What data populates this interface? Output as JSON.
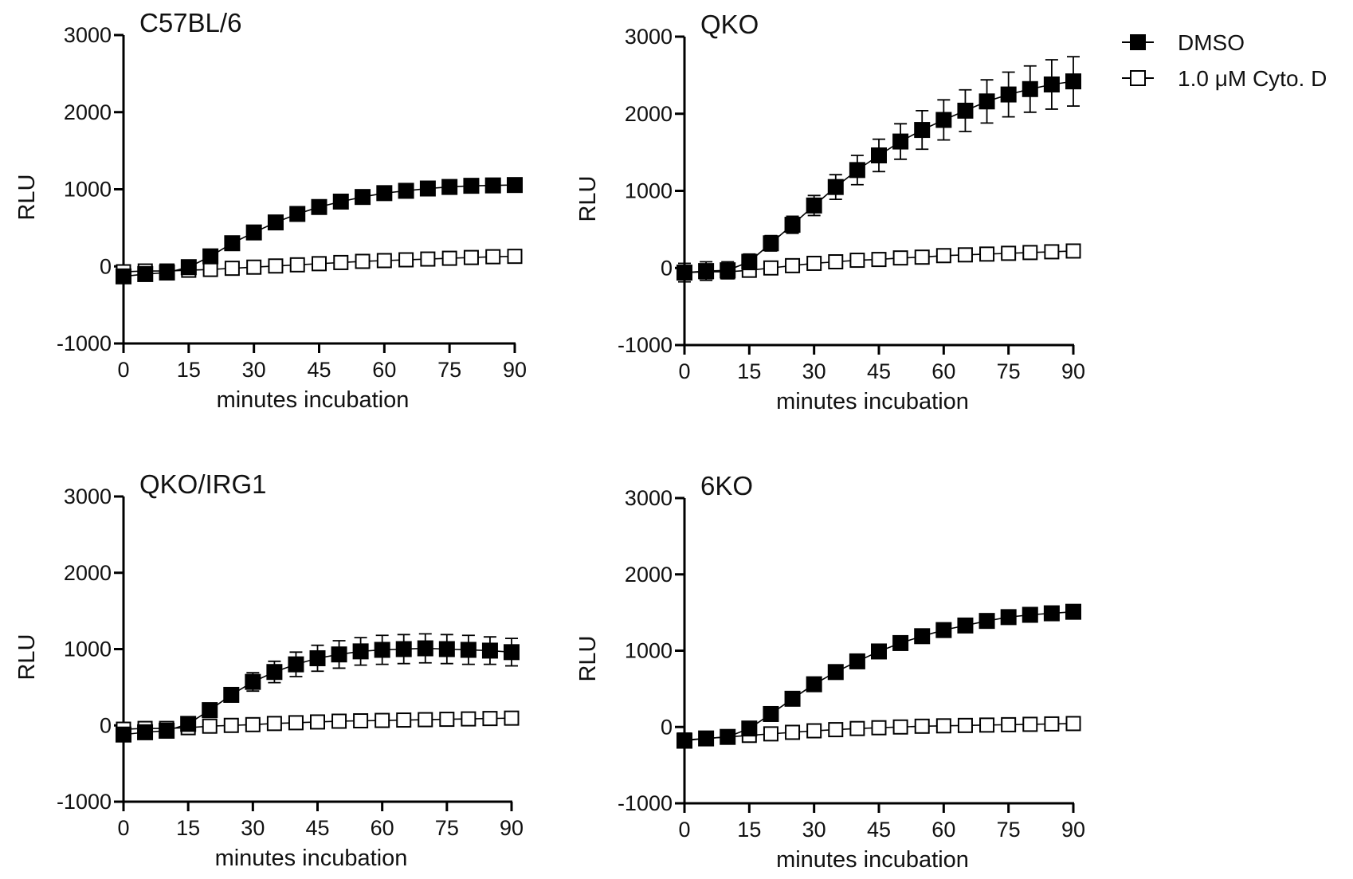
{
  "legend": {
    "position": "top-right",
    "entries": [
      {
        "label": "DMSO",
        "marker": "filled-square"
      },
      {
        "label": "1.0 μM Cyto. D",
        "marker": "open-square"
      }
    ]
  },
  "colors": {
    "dmso": "#000000",
    "cyto": "#000000",
    "open_fill": "#ffffff"
  },
  "chart_data": [
    {
      "type": "line",
      "title": "C57BL/6",
      "xlabel": "minutes incubation",
      "ylabel": "RLU",
      "xlim": [
        0,
        90
      ],
      "ylim": [
        -1000,
        3000
      ],
      "xticks": [
        0,
        15,
        30,
        45,
        60,
        75,
        90
      ],
      "yticks": [
        -1000,
        0,
        1000,
        2000,
        3000
      ],
      "grid": false,
      "x": [
        0,
        5,
        10,
        15,
        20,
        25,
        30,
        35,
        40,
        45,
        50,
        55,
        60,
        65,
        70,
        75,
        80,
        85,
        90
      ],
      "series": [
        {
          "name": "DMSO",
          "marker": "filled",
          "values": [
            -130,
            -100,
            -80,
            -10,
            130,
            300,
            440,
            570,
            680,
            770,
            840,
            900,
            950,
            980,
            1010,
            1030,
            1045,
            1050,
            1055
          ],
          "errors": [
            0,
            0,
            0,
            0,
            0,
            0,
            0,
            0,
            0,
            0,
            0,
            0,
            0,
            0,
            0,
            0,
            0,
            0,
            0
          ]
        },
        {
          "name": "1.0 μM Cyto. D",
          "marker": "open",
          "values": [
            -70,
            -60,
            -60,
            -50,
            -40,
            -25,
            -10,
            5,
            20,
            35,
            50,
            65,
            75,
            85,
            95,
            105,
            115,
            125,
            130
          ],
          "errors": [
            0,
            0,
            0,
            0,
            0,
            0,
            0,
            0,
            0,
            0,
            0,
            0,
            0,
            0,
            0,
            0,
            0,
            0,
            0
          ]
        }
      ]
    },
    {
      "type": "line",
      "title": "QKO",
      "xlabel": "minutes incubation",
      "ylabel": "RLU",
      "xlim": [
        0,
        90
      ],
      "ylim": [
        -1000,
        3000
      ],
      "xticks": [
        0,
        15,
        30,
        45,
        60,
        75,
        90
      ],
      "yticks": [
        -1000,
        0,
        1000,
        2000,
        3000
      ],
      "grid": false,
      "x": [
        0,
        5,
        10,
        15,
        20,
        25,
        30,
        35,
        40,
        45,
        50,
        55,
        60,
        65,
        70,
        75,
        80,
        85,
        90
      ],
      "series": [
        {
          "name": "DMSO",
          "marker": "filled",
          "values": [
            -60,
            -40,
            -30,
            80,
            320,
            560,
            810,
            1050,
            1270,
            1460,
            1640,
            1790,
            1920,
            2040,
            2160,
            2250,
            2320,
            2380,
            2420
          ],
          "errors": [
            120,
            120,
            110,
            100,
            100,
            110,
            130,
            160,
            190,
            210,
            230,
            250,
            260,
            270,
            280,
            290,
            300,
            320,
            320
          ]
        },
        {
          "name": "1.0 μM Cyto. D",
          "marker": "open",
          "values": [
            -60,
            -50,
            -50,
            -30,
            0,
            30,
            60,
            80,
            100,
            110,
            130,
            140,
            160,
            170,
            180,
            190,
            200,
            210,
            220
          ],
          "errors": [
            80,
            80,
            80,
            80,
            80,
            80,
            80,
            80,
            80,
            80,
            80,
            80,
            80,
            80,
            80,
            80,
            80,
            80,
            80
          ]
        }
      ]
    },
    {
      "type": "line",
      "title": "QKO/IRG1",
      "xlabel": "minutes incubation",
      "ylabel": "RLU",
      "xlim": [
        0,
        90
      ],
      "ylim": [
        -1000,
        3000
      ],
      "xticks": [
        0,
        15,
        30,
        45,
        60,
        75,
        90
      ],
      "yticks": [
        -1000,
        0,
        1000,
        2000,
        3000
      ],
      "grid": false,
      "x": [
        0,
        5,
        10,
        15,
        20,
        25,
        30,
        35,
        40,
        45,
        50,
        55,
        60,
        65,
        70,
        75,
        80,
        85,
        90
      ],
      "series": [
        {
          "name": "DMSO",
          "marker": "filled",
          "values": [
            -120,
            -90,
            -70,
            20,
            200,
            400,
            570,
            700,
            800,
            880,
            930,
            970,
            990,
            1000,
            1010,
            1000,
            990,
            980,
            960
          ],
          "errors": [
            0,
            0,
            0,
            0,
            0,
            90,
            120,
            140,
            160,
            170,
            180,
            180,
            190,
            190,
            190,
            190,
            190,
            180,
            180
          ]
        },
        {
          "name": "1.0 μM Cyto. D",
          "marker": "open",
          "values": [
            -50,
            -40,
            -40,
            -30,
            -10,
            0,
            10,
            25,
            35,
            45,
            55,
            60,
            65,
            70,
            75,
            80,
            85,
            90,
            95
          ],
          "errors": [
            0,
            0,
            0,
            0,
            0,
            0,
            0,
            0,
            0,
            0,
            0,
            0,
            0,
            0,
            0,
            0,
            0,
            0,
            0
          ]
        }
      ]
    },
    {
      "type": "line",
      "title": "6KO",
      "xlabel": "minutes incubation",
      "ylabel": "RLU",
      "xlim": [
        0,
        90
      ],
      "ylim": [
        -1000,
        3000
      ],
      "xticks": [
        0,
        15,
        30,
        45,
        60,
        75,
        90
      ],
      "yticks": [
        -1000,
        0,
        1000,
        2000,
        3000
      ],
      "grid": false,
      "x": [
        0,
        5,
        10,
        15,
        20,
        25,
        30,
        35,
        40,
        45,
        50,
        55,
        60,
        65,
        70,
        75,
        80,
        85,
        90
      ],
      "series": [
        {
          "name": "DMSO",
          "marker": "filled",
          "values": [
            -180,
            -150,
            -130,
            -20,
            170,
            370,
            560,
            720,
            860,
            990,
            1100,
            1190,
            1270,
            1330,
            1390,
            1440,
            1470,
            1490,
            1510
          ],
          "errors": [
            0,
            0,
            0,
            0,
            0,
            0,
            0,
            0,
            0,
            0,
            0,
            0,
            0,
            0,
            0,
            0,
            0,
            0,
            0
          ]
        },
        {
          "name": "1.0 μM Cyto. D",
          "marker": "open",
          "values": [
            -170,
            -150,
            -130,
            -110,
            -90,
            -70,
            -50,
            -35,
            -20,
            -10,
            0,
            10,
            15,
            20,
            25,
            30,
            35,
            40,
            45
          ],
          "errors": [
            0,
            0,
            0,
            0,
            0,
            0,
            0,
            0,
            0,
            0,
            0,
            0,
            0,
            0,
            0,
            0,
            0,
            0,
            0
          ]
        }
      ]
    }
  ]
}
